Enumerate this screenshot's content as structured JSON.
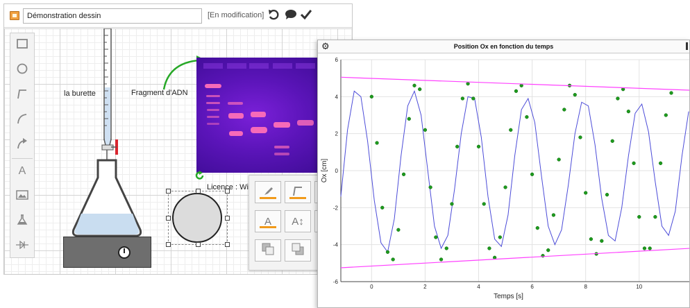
{
  "editor": {
    "title_value": "Démonstration dessin",
    "status": "[En modification]",
    "icons": [
      "document-icon",
      "undo-icon",
      "comment-icon",
      "check-icon"
    ]
  },
  "toolbar": {
    "tools": [
      "rectangle-tool",
      "ellipse-tool",
      "polyline-tool",
      "curve-tool",
      "arrow-tool",
      "text-tool",
      "image-tool",
      "lab-equipment-tool",
      "circuit-tool"
    ],
    "text_tool_glyph": "A"
  },
  "canvas": {
    "burette_label": "la burette",
    "dna_label": "Fragment d'ADN",
    "licence": "Licence : Wikipedia (GFDL & CC"
  },
  "format_panel": {
    "text_color_glyph": "A",
    "font_size_glyph": "A↕",
    "accent": "#f19a1a"
  },
  "colors": {
    "sine": "#4b4bd8",
    "points": "#1e9a1e",
    "envelope": "#ff40ff"
  },
  "chart_data": {
    "type": "line",
    "title": "Position Ox en fonction du temps",
    "xlabel": "Temps [s]",
    "ylabel": "Ox [cm]",
    "xlim": [
      -1.15,
      11.9
    ],
    "ylim": [
      -6,
      6
    ],
    "xticks": [
      0,
      2,
      4,
      6,
      8,
      10
    ],
    "yticks": [
      -6,
      -4,
      -2,
      0,
      2,
      4,
      6
    ],
    "grid": true,
    "series": [
      {
        "kind": "line",
        "x": [
          -1.15,
          -0.9,
          -0.65,
          -0.4,
          -0.15,
          0.1,
          0.35,
          0.6,
          0.85,
          1.1,
          1.35,
          1.6,
          1.85,
          2.1,
          2.35,
          2.6,
          2.85,
          3.1,
          3.35,
          3.6,
          3.85,
          4.1,
          4.35,
          4.6,
          4.85,
          5.1,
          5.35,
          5.6,
          5.85,
          6.1,
          6.35,
          6.6,
          6.85,
          7.1,
          7.35,
          7.6,
          7.85,
          8.1,
          8.35,
          8.6,
          8.85,
          9.1,
          9.35,
          9.6,
          9.85,
          10.1,
          10.35,
          10.6,
          10.85,
          11.1,
          11.35,
          11.6,
          11.85
        ],
        "y": [
          -1.4,
          2.2,
          4.3,
          4.0,
          1.6,
          -1.6,
          -3.9,
          -4.4,
          -2.6,
          0.8,
          3.5,
          4.3,
          3.0,
          0.0,
          -3.0,
          -4.2,
          -3.5,
          -1.0,
          2.0,
          4.0,
          3.9,
          1.8,
          -1.4,
          -3.7,
          -4.1,
          -2.4,
          0.8,
          3.3,
          3.9,
          2.6,
          -0.3,
          -3.0,
          -4.0,
          -3.2,
          -0.8,
          2.0,
          3.7,
          3.5,
          1.4,
          -1.5,
          -3.5,
          -3.8,
          -2.0,
          0.8,
          3.1,
          3.6,
          2.1,
          -0.6,
          -3.0,
          -3.5,
          -2.2,
          0.8,
          3.2
        ]
      },
      {
        "kind": "scatter",
        "x": [
          0.0,
          0.2,
          0.4,
          0.6,
          0.8,
          1.0,
          1.2,
          1.4,
          1.6,
          1.8,
          2.0,
          2.2,
          2.4,
          2.6,
          2.8,
          3.0,
          3.2,
          3.4,
          3.6,
          3.8,
          4.0,
          4.2,
          4.4,
          4.6,
          4.8,
          5.0,
          5.2,
          5.4,
          5.6,
          5.8,
          6.0,
          6.2,
          6.4,
          6.6,
          6.8,
          7.0,
          7.2,
          7.4,
          7.6,
          7.8,
          8.0,
          8.2,
          8.4,
          8.6,
          8.8,
          9.0,
          9.2,
          9.4,
          9.6,
          9.8,
          10.0,
          10.2,
          10.4,
          10.6,
          10.8,
          11.0,
          11.2
        ],
        "y": [
          4.0,
          1.5,
          -2.0,
          -4.4,
          -4.8,
          -3.2,
          -0.2,
          2.8,
          4.6,
          4.4,
          2.2,
          -0.9,
          -3.6,
          -4.8,
          -4.2,
          -1.8,
          1.3,
          3.9,
          4.7,
          3.9,
          1.3,
          -1.8,
          -4.2,
          -4.7,
          -3.6,
          -0.9,
          2.2,
          4.3,
          4.6,
          2.9,
          -0.2,
          -3.1,
          -4.6,
          -4.3,
          -2.4,
          0.6,
          3.3,
          4.6,
          4.1,
          1.8,
          -1.2,
          -3.7,
          -4.5,
          -3.8,
          -1.3,
          1.6,
          3.9,
          4.4,
          3.2,
          0.4,
          -2.5,
          -4.2,
          -4.2,
          -2.5,
          0.4,
          3.0,
          4.2
        ]
      },
      {
        "kind": "line",
        "x": [
          -1.15,
          11.9
        ],
        "y": [
          5.05,
          4.35
        ]
      },
      {
        "kind": "line",
        "x": [
          -1.15,
          11.9
        ],
        "y": [
          -5.25,
          -4.2
        ]
      }
    ]
  }
}
